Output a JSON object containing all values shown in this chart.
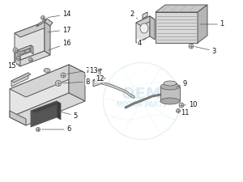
{
  "bg_color": "#ffffff",
  "watermark_color": "#a8d4e8",
  "line_color": "#555555",
  "light_face": "#e8e8e8",
  "mid_face": "#d0d0d0",
  "dark_face": "#b8b8b8"
}
